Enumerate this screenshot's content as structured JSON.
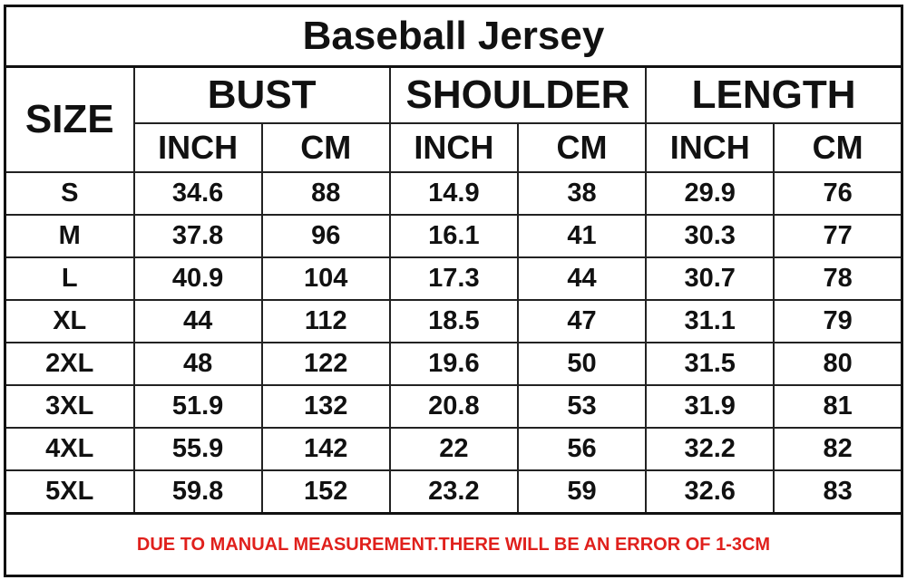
{
  "title": "Baseball Jersey",
  "headers": {
    "size": "SIZE",
    "groups": [
      "BUST",
      "SHOULDER",
      "LENGTH"
    ],
    "units": [
      "INCH",
      "CM",
      "INCH",
      "CM",
      "INCH",
      "CM"
    ]
  },
  "rows": [
    {
      "size": "S",
      "values": [
        "34.6",
        "88",
        "14.9",
        "38",
        "29.9",
        "76"
      ]
    },
    {
      "size": "M",
      "values": [
        "37.8",
        "96",
        "16.1",
        "41",
        "30.3",
        "77"
      ]
    },
    {
      "size": "L",
      "values": [
        "40.9",
        "104",
        "17.3",
        "44",
        "30.7",
        "78"
      ]
    },
    {
      "size": "XL",
      "values": [
        "44",
        "112",
        "18.5",
        "47",
        "31.1",
        "79"
      ]
    },
    {
      "size": "2XL",
      "values": [
        "48",
        "122",
        "19.6",
        "50",
        "31.5",
        "80"
      ]
    },
    {
      "size": "3XL",
      "values": [
        "51.9",
        "132",
        "20.8",
        "53",
        "31.9",
        "81"
      ]
    },
    {
      "size": "4XL",
      "values": [
        "55.9",
        "142",
        "22",
        "56",
        "32.2",
        "82"
      ]
    },
    {
      "size": "5XL",
      "values": [
        "59.8",
        "152",
        "23.2",
        "59",
        "32.6",
        "83"
      ]
    }
  ],
  "note": "DUE TO MANUAL MEASUREMENT.THERE WILL BE AN ERROR OF 1-3CM",
  "colors": {
    "note": "#e0201c",
    "border": "#111111"
  }
}
